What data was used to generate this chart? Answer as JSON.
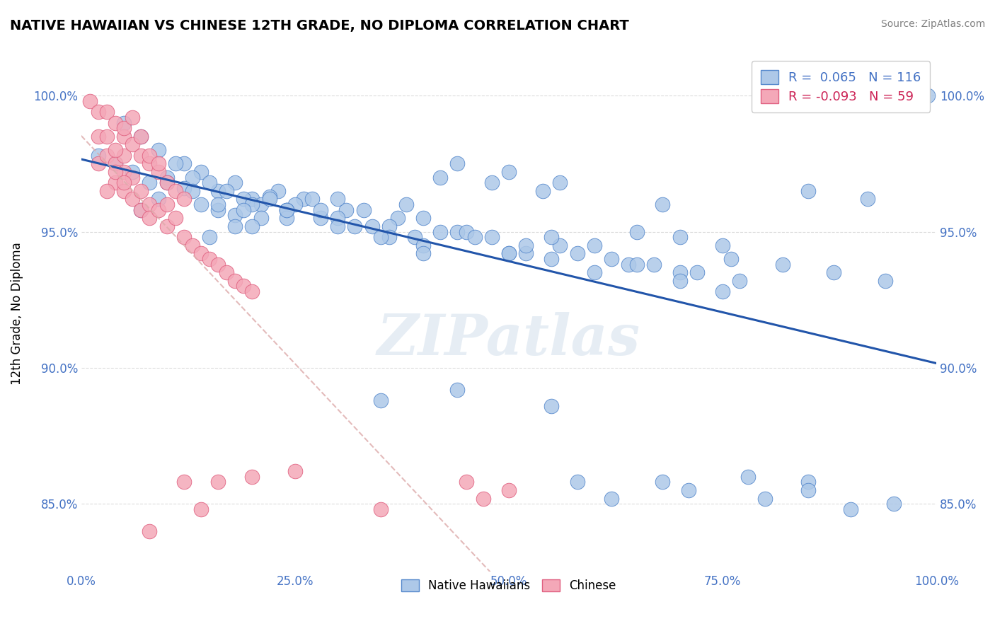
{
  "title": "NATIVE HAWAIIAN VS CHINESE 12TH GRADE, NO DIPLOMA CORRELATION CHART",
  "source_text": "Source: ZipAtlas.com",
  "ylabel": "12th Grade, No Diploma",
  "xmin": 0.0,
  "xmax": 1.0,
  "ymin": 0.825,
  "ymax": 1.015,
  "ytick_labels": [
    "85.0%",
    "90.0%",
    "95.0%",
    "100.0%"
  ],
  "ytick_values": [
    0.85,
    0.9,
    0.95,
    1.0
  ],
  "xtick_labels": [
    "0.0%",
    "25.0%",
    "50.0%",
    "75.0%",
    "100.0%"
  ],
  "xtick_values": [
    0.0,
    0.25,
    0.5,
    0.75,
    1.0
  ],
  "blue_R": 0.065,
  "blue_N": 116,
  "pink_R": -0.093,
  "pink_N": 59,
  "blue_color": "#adc8e8",
  "pink_color": "#f4a8b8",
  "blue_edge_color": "#5588cc",
  "pink_edge_color": "#e06080",
  "blue_line_color": "#2255aa",
  "pink_line_color": "#ddaaaa",
  "watermark": "ZIPatlas",
  "legend_label_blue": "Native Hawaiians",
  "legend_label_pink": "Chinese",
  "blue_scatter_x": [
    0.02,
    0.04,
    0.06,
    0.08,
    0.1,
    0.12,
    0.14,
    0.16,
    0.18,
    0.2,
    0.05,
    0.07,
    0.09,
    0.11,
    0.13,
    0.15,
    0.17,
    0.19,
    0.21,
    0.23,
    0.07,
    0.09,
    0.12,
    0.14,
    0.16,
    0.18,
    0.2,
    0.22,
    0.24,
    0.26,
    0.1,
    0.13,
    0.16,
    0.19,
    0.22,
    0.25,
    0.28,
    0.31,
    0.34,
    0.37,
    0.15,
    0.18,
    0.21,
    0.24,
    0.27,
    0.3,
    0.33,
    0.36,
    0.39,
    0.42,
    0.2,
    0.24,
    0.28,
    0.32,
    0.36,
    0.4,
    0.44,
    0.48,
    0.52,
    0.56,
    0.3,
    0.35,
    0.4,
    0.45,
    0.5,
    0.55,
    0.6,
    0.65,
    0.7,
    0.75,
    0.4,
    0.46,
    0.52,
    0.58,
    0.64,
    0.7,
    0.76,
    0.82,
    0.88,
    0.94,
    0.5,
    0.55,
    0.6,
    0.65,
    0.7,
    0.75,
    0.8,
    0.85,
    0.9,
    0.95,
    0.62,
    0.67,
    0.72,
    0.77,
    0.48,
    0.54,
    0.44,
    0.5,
    0.56,
    0.92,
    0.85,
    0.78,
    0.71,
    0.68,
    0.62,
    0.58,
    0.99,
    0.85,
    0.68,
    0.55,
    0.44,
    0.35,
    0.3,
    0.24,
    0.42,
    0.38
  ],
  "blue_scatter_y": [
    0.978,
    0.975,
    0.972,
    0.968,
    0.97,
    0.975,
    0.972,
    0.965,
    0.968,
    0.962,
    0.99,
    0.985,
    0.98,
    0.975,
    0.97,
    0.968,
    0.965,
    0.962,
    0.96,
    0.965,
    0.958,
    0.962,
    0.966,
    0.96,
    0.958,
    0.956,
    0.96,
    0.963,
    0.958,
    0.962,
    0.968,
    0.965,
    0.96,
    0.958,
    0.962,
    0.96,
    0.955,
    0.958,
    0.952,
    0.955,
    0.948,
    0.952,
    0.955,
    0.958,
    0.962,
    0.955,
    0.958,
    0.952,
    0.948,
    0.95,
    0.952,
    0.955,
    0.958,
    0.952,
    0.948,
    0.945,
    0.95,
    0.948,
    0.942,
    0.945,
    0.952,
    0.948,
    0.955,
    0.95,
    0.942,
    0.948,
    0.945,
    0.95,
    0.948,
    0.945,
    0.942,
    0.948,
    0.945,
    0.942,
    0.938,
    0.935,
    0.94,
    0.938,
    0.935,
    0.932,
    0.942,
    0.94,
    0.935,
    0.938,
    0.932,
    0.928,
    0.852,
    0.858,
    0.848,
    0.85,
    0.94,
    0.938,
    0.935,
    0.932,
    0.968,
    0.965,
    0.975,
    0.972,
    0.968,
    0.962,
    0.855,
    0.86,
    0.855,
    0.858,
    0.852,
    0.858,
    1.0,
    0.965,
    0.96,
    0.886,
    0.892,
    0.888,
    0.962,
    0.958,
    0.97,
    0.96
  ],
  "pink_scatter_x": [
    0.01,
    0.02,
    0.02,
    0.02,
    0.03,
    0.03,
    0.04,
    0.04,
    0.05,
    0.05,
    0.05,
    0.06,
    0.06,
    0.07,
    0.07,
    0.08,
    0.08,
    0.09,
    0.1,
    0.1,
    0.11,
    0.12,
    0.13,
    0.14,
    0.15,
    0.16,
    0.17,
    0.18,
    0.19,
    0.2,
    0.03,
    0.04,
    0.05,
    0.06,
    0.07,
    0.08,
    0.09,
    0.1,
    0.11,
    0.12,
    0.04,
    0.05,
    0.06,
    0.07,
    0.08,
    0.09,
    0.03,
    0.04,
    0.05,
    0.12,
    0.14,
    0.16,
    0.2,
    0.45,
    0.47,
    0.5,
    0.35,
    0.25,
    0.08
  ],
  "pink_scatter_y": [
    0.998,
    0.985,
    0.994,
    0.975,
    0.985,
    0.978,
    0.975,
    0.968,
    0.972,
    0.978,
    0.965,
    0.97,
    0.962,
    0.965,
    0.958,
    0.96,
    0.955,
    0.958,
    0.952,
    0.96,
    0.955,
    0.948,
    0.945,
    0.942,
    0.94,
    0.938,
    0.935,
    0.932,
    0.93,
    0.928,
    0.994,
    0.99,
    0.985,
    0.982,
    0.978,
    0.975,
    0.972,
    0.968,
    0.965,
    0.962,
    0.98,
    0.988,
    0.992,
    0.985,
    0.978,
    0.975,
    0.965,
    0.972,
    0.968,
    0.858,
    0.848,
    0.858,
    0.86,
    0.858,
    0.852,
    0.855,
    0.848,
    0.862,
    0.84
  ]
}
